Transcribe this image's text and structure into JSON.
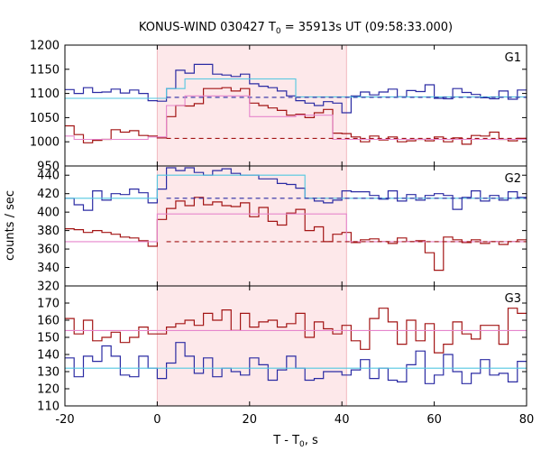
{
  "chart_data": {
    "type": "line",
    "title": "KONUS-WIND 030427 T",
    "title_sub": "0",
    "title_rest": " = 35913s UT (09:58:33.000)",
    "xlabel_main": "T - T",
    "xlabel_sub": "0",
    "xlabel_rest": ", s",
    "ylabel": "counts / sec",
    "xlim": [
      -20,
      80
    ],
    "xticks": [
      -20,
      0,
      20,
      40,
      60,
      80
    ],
    "highlight_interval": [
      0,
      41
    ],
    "colors": {
      "obs_bright": "#2b2ba3",
      "obs_soft": "#a31515",
      "model_bright": "#52c7e0",
      "model_soft": "#e686cc",
      "highlight": "#fde8ea",
      "frame": "#000000"
    },
    "panels": [
      {
        "name": "G1",
        "ylim": [
          950,
          1200
        ],
        "yticks": [
          950,
          1000,
          1050,
          1100,
          1150,
          1200
        ],
        "series": [
          {
            "role": "obs_bright",
            "x": [
              -20,
              -18,
              -16,
              -14,
              -12,
              -10,
              -8,
              -6,
              -4,
              -2,
              0,
              2,
              4,
              6,
              8,
              10,
              12,
              14,
              16,
              18,
              20,
              22,
              24,
              26,
              28,
              30,
              32,
              34,
              36,
              38,
              40,
              42,
              44,
              46,
              48,
              50,
              52,
              54,
              56,
              58,
              60,
              62,
              64,
              66,
              68,
              70,
              72,
              74,
              76,
              78,
              80
            ],
            "y": [
              1108,
              1100,
              1112,
              1102,
              1103,
              1109,
              1101,
              1107,
              1100,
              1085,
              1084,
              1110,
              1148,
              1142,
              1160,
              1160,
              1140,
              1138,
              1135,
              1140,
              1120,
              1115,
              1112,
              1105,
              1095,
              1085,
              1080,
              1075,
              1083,
              1080,
              1060,
              1095,
              1103,
              1097,
              1103,
              1109,
              1093,
              1106,
              1104,
              1118,
              1090,
              1089,
              1110,
              1102,
              1098,
              1091,
              1089,
              1105,
              1088,
              1107,
              1090
            ]
          },
          {
            "role": "obs_soft",
            "x": [
              -20,
              -18,
              -16,
              -14,
              -12,
              -10,
              -8,
              -6,
              -4,
              -2,
              0,
              2,
              4,
              6,
              8,
              10,
              12,
              14,
              16,
              18,
              20,
              22,
              24,
              26,
              28,
              30,
              32,
              34,
              36,
              38,
              40,
              42,
              44,
              46,
              48,
              50,
              52,
              54,
              56,
              58,
              60,
              62,
              64,
              66,
              68,
              70,
              72,
              74,
              76,
              78,
              80
            ],
            "y": [
              1033,
              1015,
              998,
              1003,
              1005,
              1025,
              1020,
              1023,
              1013,
              1012,
              1008,
              1052,
              1075,
              1074,
              1079,
              1110,
              1110,
              1112,
              1105,
              1110,
              1080,
              1075,
              1070,
              1065,
              1055,
              1057,
              1050,
              1060,
              1067,
              1018,
              1017,
              1010,
              1000,
              1012,
              1004,
              1010,
              1000,
              1002,
              1005,
              1002,
              1010,
              1000,
              1008,
              995,
              1013,
              1012,
              1020,
              1005,
              1002,
              1007,
              1000
            ]
          },
          {
            "role": "model_bright",
            "style": "solid",
            "x": [
              -20,
              2,
              2,
              6,
              6,
              30,
              30,
              80
            ],
            "y": [
              1090,
              1090,
              1110,
              1110,
              1130,
              1130,
              1093,
              1093
            ]
          },
          {
            "role": "obs_bright_model",
            "style": "dashed",
            "x": [
              2,
              80
            ],
            "y": [
              1092,
              1092
            ]
          },
          {
            "role": "model_soft",
            "style": "solid",
            "x": [
              -20,
              -18,
              -18,
              -2,
              -2,
              2,
              2,
              6,
              6,
              20,
              20,
              30,
              30,
              38,
              38,
              80
            ],
            "y": [
              1012,
              1012,
              1005,
              1005,
              1010,
              1010,
              1075,
              1075,
              1095,
              1095,
              1052,
              1052,
              1055,
              1055,
              1005,
              1005
            ]
          },
          {
            "role": "obs_soft_model",
            "style": "dashed",
            "x": [
              2,
              80
            ],
            "y": [
              1007,
              1007
            ]
          }
        ]
      },
      {
        "name": "G2",
        "ylim": [
          320,
          450
        ],
        "yticks": [
          320,
          340,
          360,
          380,
          400,
          420,
          440
        ],
        "series": [
          {
            "role": "obs_bright",
            "x": [
              -20,
              -18,
              -16,
              -14,
              -12,
              -10,
              -8,
              -6,
              -4,
              -2,
              0,
              2,
              4,
              6,
              8,
              10,
              12,
              14,
              16,
              18,
              20,
              22,
              24,
              26,
              28,
              30,
              32,
              34,
              36,
              38,
              40,
              42,
              44,
              46,
              48,
              50,
              52,
              54,
              56,
              58,
              60,
              62,
              64,
              66,
              68,
              70,
              72,
              74,
              76,
              78,
              80
            ],
            "y": [
              415,
              408,
              402,
              423,
              413,
              420,
              419,
              425,
              421,
              410,
              425,
              448,
              445,
              448,
              443,
              440,
              445,
              447,
              442,
              440,
              440,
              436,
              436,
              431,
              430,
              426,
              415,
              412,
              410,
              413,
              423,
              422,
              422,
              418,
              414,
              423,
              412,
              419,
              413,
              418,
              420,
              418,
              403,
              416,
              423,
              412,
              418,
              413,
              422,
              416,
              422
            ]
          },
          {
            "role": "obs_soft",
            "x": [
              -20,
              -18,
              -16,
              -14,
              -12,
              -10,
              -8,
              -6,
              -4,
              -2,
              0,
              2,
              4,
              6,
              8,
              10,
              12,
              14,
              16,
              18,
              20,
              22,
              24,
              26,
              28,
              30,
              32,
              34,
              36,
              38,
              40,
              42,
              44,
              46,
              48,
              50,
              52,
              54,
              56,
              58,
              60,
              62,
              64,
              66,
              68,
              70,
              72,
              74,
              76,
              78,
              80
            ],
            "y": [
              382,
              381,
              378,
              380,
              378,
              376,
              373,
              372,
              369,
              363,
              392,
              404,
              412,
              407,
              416,
              408,
              411,
              407,
              406,
              410,
              395,
              405,
              390,
              386,
              399,
              403,
              380,
              384,
              368,
              376,
              378,
              367,
              370,
              371,
              368,
              366,
              372,
              368,
              369,
              356,
              337,
              373,
              370,
              367,
              370,
              366,
              368,
              365,
              368,
              370,
              368
            ]
          },
          {
            "role": "model_bright",
            "style": "solid",
            "x": [
              -20,
              0,
              0,
              32,
              32,
              80
            ],
            "y": [
              415,
              415,
              440,
              440,
              415,
              415
            ]
          },
          {
            "role": "obs_bright_model",
            "style": "dashed",
            "x": [
              2,
              80
            ],
            "y": [
              415,
              415
            ]
          },
          {
            "role": "model_soft",
            "style": "solid",
            "x": [
              -20,
              0,
              0,
              41,
              41,
              80
            ],
            "y": [
              368,
              368,
              398,
              398,
              368,
              368
            ]
          },
          {
            "role": "obs_soft_model",
            "style": "dashed",
            "x": [
              2,
              80
            ],
            "y": [
              368,
              368
            ]
          }
        ]
      },
      {
        "name": "G3",
        "ylim": [
          110,
          180
        ],
        "yticks": [
          110,
          120,
          130,
          140,
          150,
          160,
          170
        ],
        "series": [
          {
            "role": "obs_soft",
            "x": [
              -20,
              -18,
              -16,
              -14,
              -12,
              -10,
              -8,
              -6,
              -4,
              -2,
              0,
              2,
              4,
              6,
              8,
              10,
              12,
              14,
              16,
              18,
              20,
              22,
              24,
              26,
              28,
              30,
              32,
              34,
              36,
              38,
              40,
              42,
              44,
              46,
              48,
              50,
              52,
              54,
              56,
              58,
              60,
              62,
              64,
              66,
              68,
              70,
              72,
              74,
              76,
              78,
              80
            ],
            "y": [
              161,
              152,
              160,
              148,
              150,
              153,
              147,
              150,
              156,
              152,
              152,
              156,
              158,
              160,
              157,
              164,
              160,
              166,
              154,
              164,
              156,
              159,
              160,
              156,
              158,
              164,
              150,
              159,
              155,
              152,
              157,
              148,
              143,
              161,
              167,
              159,
              146,
              160,
              148,
              158,
              141,
              146,
              159,
              152,
              149,
              157,
              157,
              146,
              167,
              164,
              158
            ]
          },
          {
            "role": "obs_bright",
            "x": [
              -20,
              -18,
              -16,
              -14,
              -12,
              -10,
              -8,
              -6,
              -4,
              -2,
              0,
              2,
              4,
              6,
              8,
              10,
              12,
              14,
              16,
              18,
              20,
              22,
              24,
              26,
              28,
              30,
              32,
              34,
              36,
              38,
              40,
              42,
              44,
              46,
              48,
              50,
              52,
              54,
              56,
              58,
              60,
              62,
              64,
              66,
              68,
              70,
              72,
              74,
              76,
              78,
              80
            ],
            "y": [
              138,
              127,
              139,
              136,
              145,
              139,
              128,
              127,
              139,
              132,
              126,
              135,
              147,
              139,
              129,
              138,
              127,
              132,
              130,
              128,
              138,
              134,
              125,
              131,
              139,
              132,
              125,
              126,
              130,
              130,
              128,
              131,
              137,
              126,
              132,
              125,
              124,
              134,
              142,
              123,
              128,
              140,
              130,
              123,
              129,
              137,
              128,
              129,
              124,
              136,
              130
            ]
          },
          {
            "role": "model_soft",
            "style": "solid",
            "x": [
              -20,
              80
            ],
            "y": [
              154,
              154
            ]
          },
          {
            "role": "model_bright",
            "style": "solid",
            "x": [
              -20,
              80
            ],
            "y": [
              132,
              132
            ]
          }
        ]
      }
    ]
  }
}
